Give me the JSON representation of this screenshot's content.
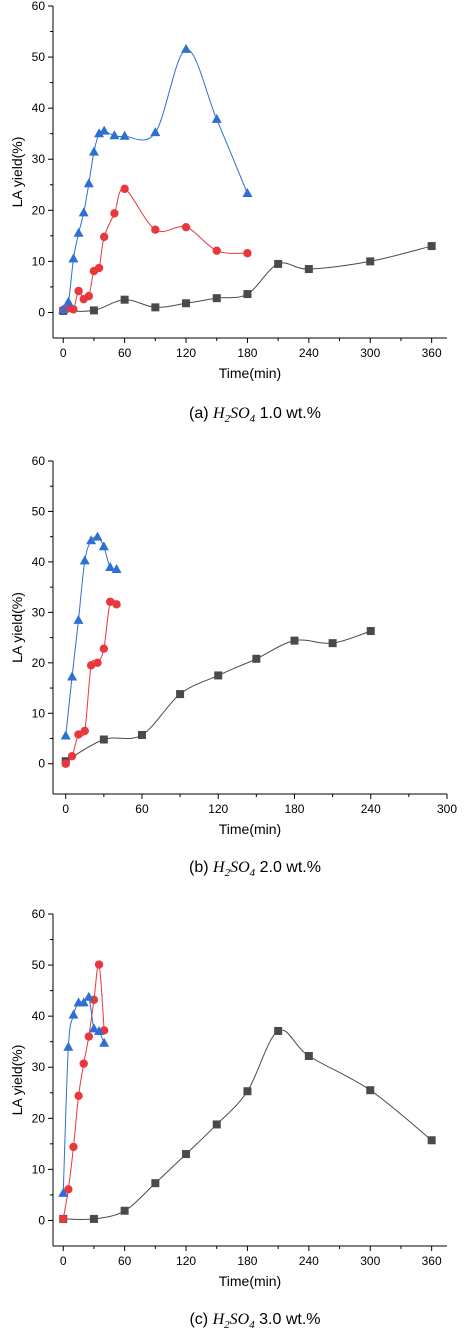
{
  "chart_data": [
    {
      "type": "line",
      "caption": {
        "label": "(a)",
        "formula_main": "H",
        "formula_sub1": "2",
        "formula_mid": "SO",
        "formula_sub2": "4",
        "concentration": "1.0 wt.%"
      },
      "xlabel": "Time(min)",
      "ylabel": "LA yield(%)",
      "xlim": [
        -10,
        375
      ],
      "ylim": [
        -5,
        60
      ],
      "xticks": [
        0,
        60,
        120,
        180,
        240,
        300,
        360
      ],
      "yticks": [
        0,
        10,
        20,
        30,
        40,
        50,
        60
      ],
      "legend": "none",
      "series": [
        {
          "marker": "square",
          "color": "#4a4a4a",
          "x": [
            0,
            30,
            60,
            90,
            120,
            150,
            180,
            210,
            240,
            300,
            360
          ],
          "y": [
            0.3,
            0.4,
            2.5,
            1.0,
            1.8,
            2.8,
            3.6,
            9.5,
            8.5,
            10.0,
            13.0
          ]
        },
        {
          "marker": "circle",
          "color": "#e8383d",
          "x": [
            0,
            5,
            10,
            15,
            20,
            25,
            30,
            35,
            40,
            50,
            60,
            90,
            120,
            150,
            180
          ],
          "y": [
            0.5,
            0.8,
            0.6,
            4.2,
            2.6,
            3.2,
            8.1,
            8.7,
            14.8,
            19.4,
            24.2,
            16.2,
            16.7,
            12.1,
            11.6
          ]
        },
        {
          "marker": "triangle",
          "color": "#2e6fd3",
          "x": [
            0,
            5,
            10,
            15,
            20,
            25,
            30,
            35,
            40,
            50,
            60,
            90,
            120,
            150,
            180
          ],
          "y": [
            0.5,
            2.0,
            10.5,
            15.5,
            19.5,
            25.2,
            31.4,
            35.0,
            35.5,
            34.6,
            34.5,
            35.2,
            51.5,
            37.8,
            23.3
          ]
        }
      ]
    },
    {
      "type": "line",
      "caption": {
        "label": "(b)",
        "formula_main": "H",
        "formula_sub1": "2",
        "formula_mid": "SO",
        "formula_sub2": "4",
        "concentration": "2.0 wt.%"
      },
      "xlabel": "Time(min)",
      "ylabel": "LA yield(%)",
      "xlim": [
        -10,
        300
      ],
      "ylim": [
        -6,
        60
      ],
      "xticks": [
        0,
        60,
        120,
        180,
        240,
        300
      ],
      "yticks": [
        0,
        10,
        20,
        30,
        40,
        50,
        60
      ],
      "legend": "none",
      "series": [
        {
          "marker": "square",
          "color": "#4a4a4a",
          "x": [
            0,
            30,
            60,
            90,
            120,
            150,
            180,
            210,
            240
          ],
          "y": [
            0.5,
            4.8,
            5.7,
            13.8,
            17.5,
            20.8,
            24.4,
            23.9,
            26.3
          ]
        },
        {
          "marker": "circle",
          "color": "#e8383d",
          "x": [
            0,
            5,
            10,
            15,
            20,
            25,
            30,
            35,
            40
          ],
          "y": [
            0.0,
            1.5,
            5.8,
            6.5,
            19.5,
            20.0,
            22.8,
            32.1,
            31.6
          ]
        },
        {
          "marker": "triangle",
          "color": "#2e6fd3",
          "x": [
            0,
            5,
            10,
            15,
            20,
            25,
            30,
            35,
            40
          ],
          "y": [
            5.5,
            17.2,
            28.4,
            40.2,
            44.2,
            44.9,
            43.0,
            38.9,
            38.5
          ]
        }
      ]
    },
    {
      "type": "line",
      "caption": {
        "label": "(c)",
        "formula_main": "H",
        "formula_sub1": "2",
        "formula_mid": "SO",
        "formula_sub2": "4",
        "concentration": "3.0 wt.%"
      },
      "xlabel": "Time(min)",
      "ylabel": "LA yield(%)",
      "xlim": [
        -10,
        375
      ],
      "ylim": [
        -5,
        60
      ],
      "xticks": [
        0,
        60,
        120,
        180,
        240,
        300,
        360
      ],
      "yticks": [
        0,
        10,
        20,
        30,
        40,
        50,
        60
      ],
      "legend": "none",
      "series": [
        {
          "marker": "square",
          "color": "#4a4a4a",
          "x": [
            0,
            30,
            60,
            90,
            120,
            150,
            180,
            210,
            240,
            300,
            360
          ],
          "y": [
            0.3,
            0.3,
            1.9,
            7.3,
            13.0,
            18.8,
            25.3,
            37.1,
            32.2,
            25.5,
            15.7
          ]
        },
        {
          "marker": "circle",
          "color": "#e8383d",
          "x": [
            0,
            5,
            10,
            15,
            20,
            25,
            30,
            35,
            40
          ],
          "y": [
            0.3,
            6.1,
            14.4,
            24.4,
            30.7,
            36.0,
            43.2,
            50.1,
            37.2
          ]
        },
        {
          "marker": "triangle",
          "color": "#2e6fd3",
          "x": [
            0,
            5,
            10,
            15,
            20,
            25,
            30,
            35,
            40
          ],
          "y": [
            5.3,
            33.9,
            40.2,
            42.6,
            42.6,
            43.7,
            37.5,
            37.0,
            34.7
          ]
        }
      ]
    }
  ]
}
